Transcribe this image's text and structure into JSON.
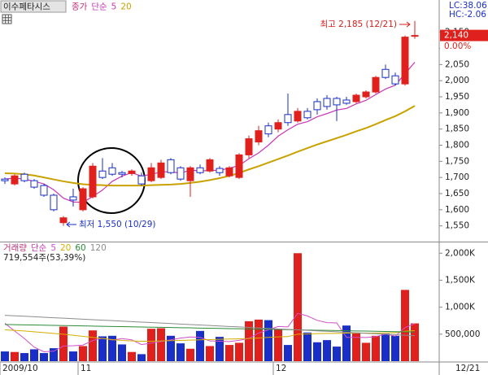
{
  "header": {
    "stock_name": "이수페타시스",
    "lc": "LC:38.06",
    "hc": "HC:-2.06"
  },
  "chart_data": [
    {
      "type": "candlestick",
      "legend_labels": [
        "종가",
        "단순"
      ],
      "categories": [
        "2009/10",
        null,
        null,
        null,
        null,
        null,
        null,
        null,
        "11",
        null,
        null,
        null,
        null,
        null,
        null,
        null,
        null,
        null,
        null,
        null,
        null,
        null,
        null,
        null,
        null,
        null,
        null,
        null,
        "12",
        null,
        null,
        null,
        null,
        null,
        null,
        null,
        null,
        null,
        null,
        null,
        null,
        null,
        null
      ],
      "open": [
        1695,
        1680,
        1710,
        1690,
        1675,
        1645,
        1560,
        1640,
        1600,
        1640,
        1720,
        1730,
        1715,
        1712,
        1705,
        1690,
        1700,
        1755,
        1730,
        1690,
        1730,
        1720,
        1728,
        1705,
        1700,
        1770,
        1810,
        1860,
        1850,
        1895,
        1875,
        1905,
        1935,
        1945,
        1945,
        1940,
        1935,
        1950,
        1965,
        2035,
        2015,
        1990,
        2140
      ],
      "high": [
        1700,
        1710,
        1715,
        1695,
        1680,
        1650,
        1580,
        1665,
        1670,
        1745,
        1760,
        1745,
        1720,
        1725,
        1715,
        1745,
        1755,
        1760,
        1735,
        1735,
        1740,
        1760,
        1735,
        1735,
        1775,
        1830,
        1860,
        1870,
        1880,
        1960,
        1915,
        1915,
        1945,
        1955,
        1950,
        1950,
        1960,
        1970,
        2015,
        2050,
        2025,
        2140,
        2185
      ],
      "low": [
        1680,
        1675,
        1685,
        1665,
        1640,
        1595,
        1550,
        1610,
        1595,
        1635,
        1695,
        1705,
        1700,
        1705,
        1675,
        1685,
        1695,
        1710,
        1690,
        1640,
        1710,
        1715,
        1705,
        1700,
        1695,
        1760,
        1800,
        1825,
        1840,
        1860,
        1870,
        1880,
        1895,
        1910,
        1875,
        1925,
        1930,
        1945,
        1960,
        2005,
        1985,
        1985,
        2130
      ],
      "close": [
        1690,
        1705,
        1690,
        1670,
        1645,
        1600,
        1575,
        1630,
        1665,
        1735,
        1700,
        1710,
        1710,
        1720,
        1680,
        1730,
        1745,
        1715,
        1695,
        1730,
        1715,
        1755,
        1715,
        1730,
        1770,
        1820,
        1845,
        1835,
        1870,
        1870,
        1905,
        1885,
        1910,
        1920,
        1925,
        1930,
        1955,
        1965,
        2010,
        2010,
        1990,
        2135,
        2140
      ],
      "up_color": "#e0201c",
      "down_color": "#1a2fc8",
      "series": [
        {
          "name": "5",
          "color": "#c838b8",
          "values": [
            1695,
            1698,
            1695,
            1688,
            1680,
            1662,
            1636,
            1624,
            1623,
            1641,
            1661,
            1688,
            1704,
            1715,
            1704,
            1710,
            1717,
            1718,
            1713,
            1723,
            1720,
            1722,
            1722,
            1729,
            1737,
            1758,
            1776,
            1800,
            1828,
            1848,
            1865,
            1873,
            1888,
            1898,
            1909,
            1914,
            1928,
            1939,
            1957,
            1974,
            1986,
            2022,
            2057
          ]
        },
        {
          "name": "20",
          "color": "#c9a200",
          "values": [
            1713,
            1712,
            1710,
            1706,
            1700,
            1694,
            1688,
            1683,
            1679,
            1677,
            1676,
            1675,
            1675,
            1675,
            1675,
            1676,
            1677,
            1678,
            1680,
            1683,
            1687,
            1692,
            1698,
            1705,
            1714,
            1725,
            1735,
            1746,
            1757,
            1768,
            1780,
            1791,
            1802,
            1812,
            1822,
            1832,
            1843,
            1853,
            1865,
            1878,
            1890,
            1905,
            1922
          ]
        }
      ],
      "ylim": [
        1500,
        2250
      ],
      "yticks": [
        {
          "value": 1550,
          "label": "1,550"
        },
        {
          "value": 1600,
          "label": "1,600"
        },
        {
          "value": 1650,
          "label": "1,650"
        },
        {
          "value": 1700,
          "label": "1,700"
        },
        {
          "value": 1750,
          "label": "1,750"
        },
        {
          "value": 1800,
          "label": "1,800"
        },
        {
          "value": 1850,
          "label": "1,850"
        },
        {
          "value": 1900,
          "label": "1,900"
        },
        {
          "value": 1950,
          "label": "1,950"
        },
        {
          "value": 2000,
          "label": "2,000"
        },
        {
          "value": 2050,
          "label": "2,050"
        },
        {
          "value": 2100,
          "label": "2,100"
        },
        {
          "value": 2150,
          "label": "2,150"
        }
      ],
      "current": {
        "value": 2140,
        "label": "2,140"
      },
      "change": "0.00%",
      "annotations": [
        "최고 2,185 (12/21)",
        "최저 1,550 (10/29)"
      ],
      "last_date": "12/21"
    },
    {
      "type": "volume",
      "legend_labels": [
        "거래량",
        "단순"
      ],
      "info": "719,554주(53,39%)",
      "values": [
        180000,
        170000,
        150000,
        220000,
        150000,
        240000,
        640000,
        180000,
        280000,
        570000,
        460000,
        470000,
        310000,
        170000,
        130000,
        600000,
        610000,
        470000,
        330000,
        230000,
        560000,
        280000,
        450000,
        300000,
        340000,
        740000,
        770000,
        760000,
        600000,
        300000,
        2000000,
        530000,
        350000,
        390000,
        270000,
        660000,
        530000,
        340000,
        470000,
        510000,
        470000,
        1320000,
        700000
      ],
      "series": [
        {
          "name": "5",
          "color": "#d050c8",
          "values": [
            700000,
            560000,
            420000,
            260000,
            174000,
            186000,
            280000,
            286000,
            298000,
            382000,
            426000,
            392000,
            418000,
            396000,
            308000,
            336000,
            364000,
            396000,
            428000,
            448000,
            440000,
            374000,
            370000,
            364000,
            386000,
            422000,
            520000,
            582000,
            642000,
            634000,
            886000,
            838000,
            756000,
            714000,
            708000,
            440000,
            440000,
            438000,
            454000,
            502000,
            464000,
            622000,
            694000
          ]
        },
        {
          "name": "20",
          "color": "#d4b000",
          "values": [
            580000,
            570000,
            560000,
            545000,
            530000,
            515000,
            500000,
            480000,
            460000,
            440000,
            420000,
            400000,
            385000,
            375000,
            370000,
            370000,
            375000,
            380000,
            385000,
            390000,
            395000,
            400000,
            405000,
            410000,
            415000,
            420000,
            430000,
            440000,
            450000,
            455000,
            500000,
            505000,
            510000,
            515000,
            515000,
            520000,
            520000,
            520000,
            520000,
            525000,
            525000,
            555000,
            565000
          ]
        },
        {
          "name": "60",
          "color": "#2e8b3a",
          "values": [
            680000,
            677000,
            673000,
            670000,
            667000,
            663000,
            660000,
            657000,
            653000,
            650000,
            647000,
            643000,
            640000,
            637000,
            633000,
            630000,
            627000,
            623000,
            620000,
            617000,
            613000,
            610000,
            607000,
            603000,
            600000,
            597000,
            593000,
            590000,
            587000,
            583000,
            580000,
            577000,
            573000,
            570000,
            567000,
            563000,
            560000,
            557000,
            553000,
            550000,
            547000,
            543000,
            540000
          ]
        },
        {
          "name": "120",
          "color": "#8c8c8c",
          "values": [
            850000,
            841000,
            832000,
            823000,
            814000,
            805000,
            796000,
            787000,
            778000,
            769000,
            760000,
            751000,
            742000,
            733000,
            724000,
            715000,
            706000,
            697000,
            688000,
            679000,
            670000,
            661000,
            652000,
            643000,
            634000,
            625000,
            616000,
            607000,
            598000,
            589000,
            580000,
            571000,
            562000,
            553000,
            544000,
            535000,
            526000,
            517000,
            508000,
            499000,
            490000,
            481000,
            472000
          ]
        }
      ],
      "ylim": [
        0,
        2200000
      ],
      "yticks": [
        {
          "value": 500000,
          "label": "500,000"
        },
        {
          "value": 1000000,
          "label": "1,000K"
        },
        {
          "value": 1500000,
          "label": "1,500K"
        },
        {
          "value": 2000000,
          "label": "2,000K"
        }
      ]
    }
  ]
}
